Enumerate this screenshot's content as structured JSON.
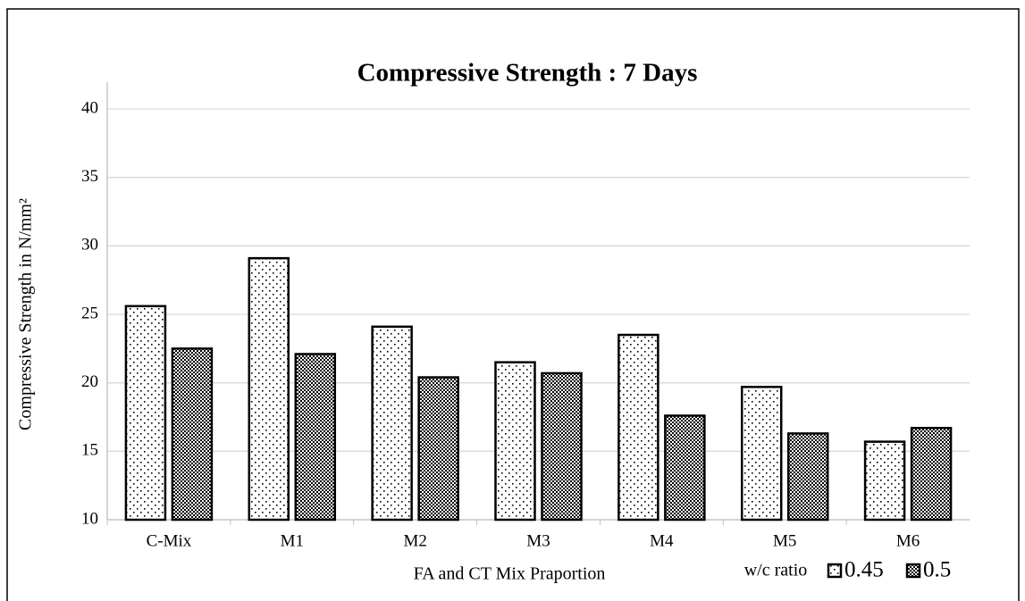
{
  "chart_data": {
    "type": "bar",
    "title": "Compressive Strength : 7 Days",
    "x_label": "FA and CT Mix Praportion",
    "y_label": "Compressive Strength in N/mm²",
    "legend_title": "w/c ratio",
    "categories": [
      "C-Mix",
      "M1",
      "M2",
      "M3",
      "M4",
      "M5",
      "M6"
    ],
    "series": [
      {
        "name": "0.45",
        "color": "#000000",
        "pattern": "dots",
        "values": [
          25.6,
          29.1,
          24.1,
          21.5,
          23.5,
          19.7,
          15.7
        ]
      },
      {
        "name": "0.5",
        "color": "#000000",
        "pattern": "checker",
        "values": [
          22.5,
          22.1,
          20.4,
          20.7,
          17.6,
          16.3,
          16.7
        ]
      }
    ],
    "ylim": [
      10,
      40
    ],
    "yticks": [
      10,
      15,
      20,
      25,
      30,
      35,
      40
    ],
    "grid": true
  }
}
